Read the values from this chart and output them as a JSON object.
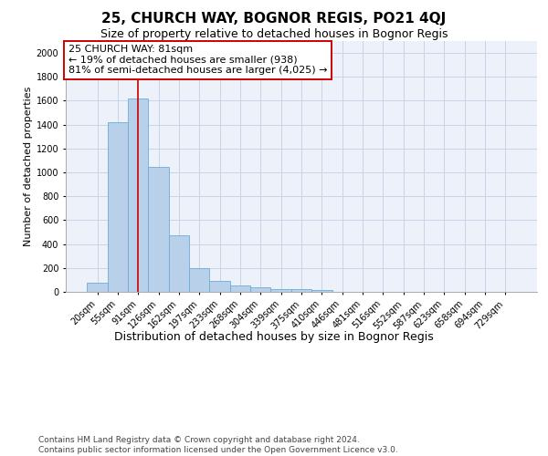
{
  "title": "25, CHURCH WAY, BOGNOR REGIS, PO21 4QJ",
  "subtitle": "Size of property relative to detached houses in Bognor Regis",
  "xlabel": "Distribution of detached houses by size in Bognor Regis",
  "ylabel": "Number of detached properties",
  "footer_line1": "Contains HM Land Registry data © Crown copyright and database right 2024.",
  "footer_line2": "Contains public sector information licensed under the Open Government Licence v3.0.",
  "categories": [
    "20sqm",
    "55sqm",
    "91sqm",
    "126sqm",
    "162sqm",
    "197sqm",
    "233sqm",
    "268sqm",
    "304sqm",
    "339sqm",
    "375sqm",
    "410sqm",
    "446sqm",
    "481sqm",
    "516sqm",
    "552sqm",
    "587sqm",
    "623sqm",
    "658sqm",
    "694sqm",
    "729sqm"
  ],
  "values": [
    75,
    1420,
    1620,
    1050,
    470,
    200,
    95,
    50,
    35,
    25,
    20,
    15,
    0,
    0,
    0,
    0,
    0,
    0,
    0,
    0,
    0
  ],
  "bar_color": "#b8d0ea",
  "bar_edge_color": "#6aaed6",
  "grid_color": "#c8d4e8",
  "background_color": "#edf2fa",
  "annotation_line_color": "#cc0000",
  "annotation_text_line1": "25 CHURCH WAY: 81sqm",
  "annotation_text_line2": "← 19% of detached houses are smaller (938)",
  "annotation_text_line3": "81% of semi-detached houses are larger (4,025) →",
  "property_line_idx": 2,
  "ylim": [
    0,
    2100
  ],
  "yticks": [
    0,
    200,
    400,
    600,
    800,
    1000,
    1200,
    1400,
    1600,
    1800,
    2000
  ],
  "title_fontsize": 11,
  "subtitle_fontsize": 9,
  "xlabel_fontsize": 9,
  "ylabel_fontsize": 8,
  "tick_fontsize": 7,
  "annotation_fontsize": 8,
  "footer_fontsize": 6.5
}
